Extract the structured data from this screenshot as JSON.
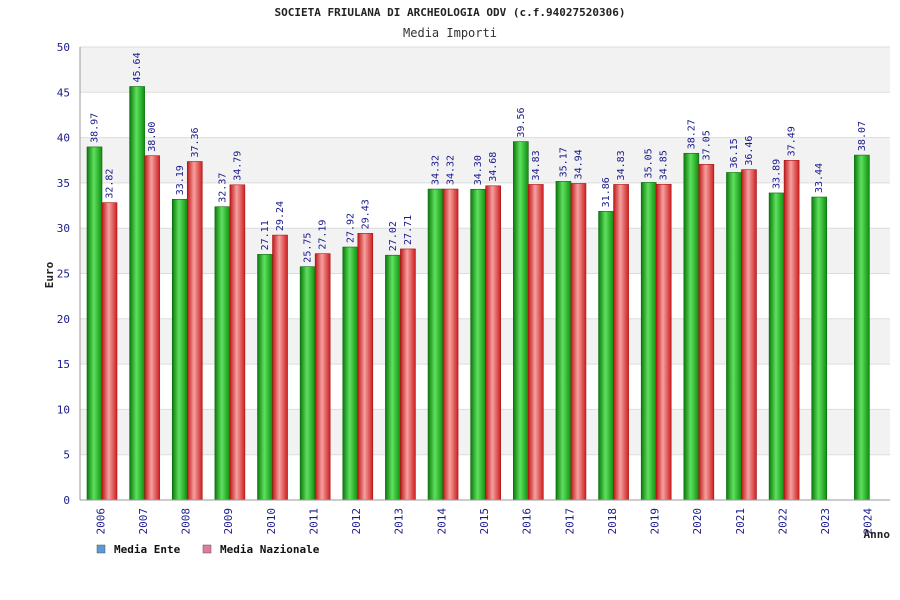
{
  "header": {
    "title": "SOCIETA FRIULANA DI ARCHEOLOGIA ODV (c.f.94027520306)",
    "subtitle": "Media Importi"
  },
  "chart_data": {
    "type": "bar",
    "title": "Media Importi",
    "xlabel": "Anno",
    "ylabel": "Euro",
    "ylim": [
      0,
      50
    ],
    "yticks": [
      0,
      5,
      10,
      15,
      20,
      25,
      30,
      35,
      40,
      45,
      50
    ],
    "grid": true,
    "legend_position": "bottom-left",
    "categories": [
      "2006",
      "2007",
      "2008",
      "2009",
      "2010",
      "2011",
      "2012",
      "2013",
      "2014",
      "2015",
      "2016",
      "2017",
      "2018",
      "2019",
      "2020",
      "2021",
      "2022",
      "2023",
      "2024"
    ],
    "series": [
      {
        "name": "Media Ente",
        "color": "#22a822",
        "legend_color": "#5b9bd5",
        "values": [
          38.97,
          45.64,
          33.19,
          32.37,
          27.11,
          25.75,
          27.92,
          27.02,
          34.32,
          34.3,
          39.56,
          35.17,
          31.86,
          35.05,
          38.27,
          36.15,
          33.89,
          33.44,
          38.07
        ],
        "labels": [
          "38.97",
          "45.64",
          "33.19",
          "32.37",
          "27.11",
          "25.75",
          "27.92",
          "27.02",
          "34.32",
          "34.30",
          "39.56",
          "35.17",
          "31.86",
          "35.05",
          "38.27",
          "36.15",
          "33.89",
          "33.44",
          "38.07"
        ]
      },
      {
        "name": "Media Nazionale",
        "color": "#e03c3c",
        "legend_color": "#e07b9a",
        "values": [
          32.82,
          38.0,
          37.36,
          34.79,
          29.24,
          27.19,
          29.43,
          27.71,
          34.32,
          34.68,
          34.83,
          34.94,
          34.83,
          34.85,
          37.05,
          36.46,
          37.49,
          null,
          null
        ],
        "labels": [
          "32.82",
          "38.00",
          "37.36",
          "34.79",
          "29.24",
          "27.19",
          "29.43",
          "27.71",
          "34.32",
          "34.68",
          "34.83",
          "34.94",
          "34.83",
          "34.85",
          "37.05",
          "36.46",
          "37.49",
          "",
          ""
        ]
      }
    ]
  }
}
